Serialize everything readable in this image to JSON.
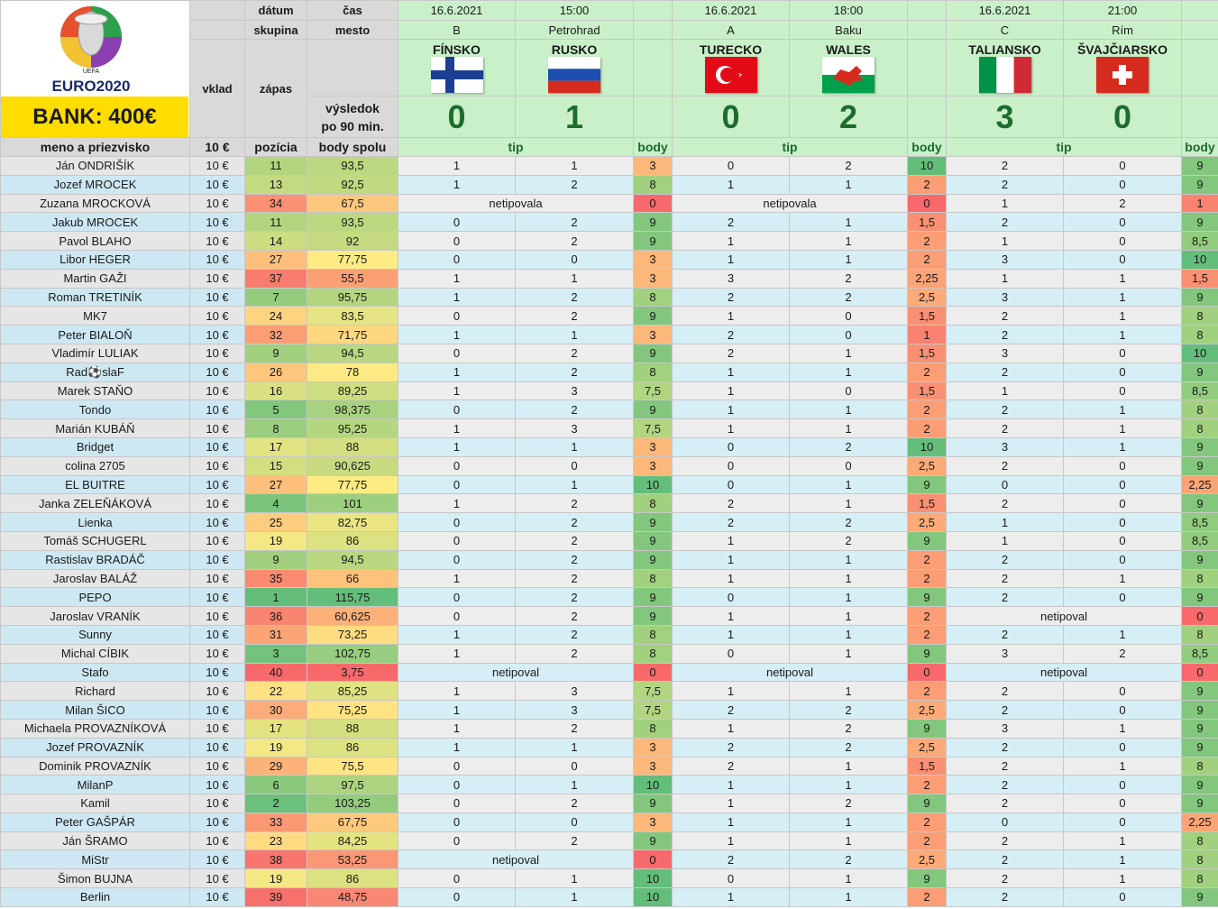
{
  "logo": {
    "text": "EURO2020",
    "uefa": "UEFA"
  },
  "bank": "BANK: 400€",
  "labels": {
    "datum": "dátum",
    "cas": "čas",
    "skupina": "skupina",
    "mesto": "mesto",
    "vklad": "vklad",
    "zapas": "zápas",
    "vysledok1": "výsledok",
    "vysledok2": "po 90 min.",
    "meno": "meno a priezvisko",
    "vklad_val": "10 €",
    "pozicia": "pozícia",
    "body_spolu": "body spolu",
    "tip": "tip",
    "body": "body"
  },
  "matches": [
    {
      "date": "16.6.2021",
      "time": "15:00",
      "group": "B",
      "city": "Petrohrad",
      "home": "FÍNSKO",
      "away": "RUSKO",
      "home_score": "0",
      "away_score": "1",
      "home_flag": "finland-flag-icon",
      "away_flag": "russia-flag-icon"
    },
    {
      "date": "16.6.2021",
      "time": "18:00",
      "group": "A",
      "city": "Baku",
      "home": "TURECKO",
      "away": "WALES",
      "home_score": "0",
      "away_score": "2",
      "home_flag": "turkey-flag-icon",
      "away_flag": "wales-flag-icon"
    },
    {
      "date": "16.6.2021",
      "time": "21:00",
      "group": "C",
      "city": "Rím",
      "home": "TALIANSKO",
      "away": "ŠVAJČIARSKO",
      "home_score": "3",
      "away_score": "0",
      "home_flag": "italy-flag-icon",
      "away_flag": "switzerland-flag-icon"
    }
  ],
  "rows": [
    {
      "name": "Ján ONDRIŠÍK",
      "stake": "10 €",
      "pos": "11",
      "total": "93,5",
      "t": [
        [
          "1",
          "1",
          "3"
        ],
        [
          "0",
          "2",
          "10"
        ],
        [
          "2",
          "0",
          "9"
        ]
      ]
    },
    {
      "name": "Jozef MROCEK",
      "stake": "10 €",
      "pos": "13",
      "total": "92,5",
      "t": [
        [
          "1",
          "2",
          "8"
        ],
        [
          "1",
          "1",
          "2"
        ],
        [
          "2",
          "0",
          "9"
        ]
      ]
    },
    {
      "name": "Zuzana MROCKOVÁ",
      "stake": "10 €",
      "pos": "34",
      "total": "67,5",
      "t": [
        [
          "netipovala",
          "",
          "0"
        ],
        [
          "netipovala",
          "",
          "0"
        ],
        [
          "1",
          "2",
          "1"
        ]
      ]
    },
    {
      "name": "Jakub MROCEK",
      "stake": "10 €",
      "pos": "11",
      "total": "93,5",
      "t": [
        [
          "0",
          "2",
          "9"
        ],
        [
          "2",
          "1",
          "1,5"
        ],
        [
          "2",
          "0",
          "9"
        ]
      ]
    },
    {
      "name": "Pavol BLAHO",
      "stake": "10 €",
      "pos": "14",
      "total": "92",
      "t": [
        [
          "0",
          "2",
          "9"
        ],
        [
          "1",
          "1",
          "2"
        ],
        [
          "1",
          "0",
          "8,5"
        ]
      ]
    },
    {
      "name": "Libor HEGER",
      "stake": "10 €",
      "pos": "27",
      "total": "77,75",
      "t": [
        [
          "0",
          "0",
          "3"
        ],
        [
          "1",
          "1",
          "2"
        ],
        [
          "3",
          "0",
          "10"
        ]
      ]
    },
    {
      "name": "Martin GAŽI",
      "stake": "10 €",
      "pos": "37",
      "total": "55,5",
      "t": [
        [
          "1",
          "1",
          "3"
        ],
        [
          "3",
          "2",
          "2,25"
        ],
        [
          "1",
          "1",
          "1,5"
        ]
      ]
    },
    {
      "name": "Roman TRETINÍK",
      "stake": "10 €",
      "pos": "7",
      "total": "95,75",
      "t": [
        [
          "1",
          "2",
          "8"
        ],
        [
          "2",
          "2",
          "2,5"
        ],
        [
          "3",
          "1",
          "9"
        ]
      ]
    },
    {
      "name": "MK7",
      "stake": "10 €",
      "pos": "24",
      "total": "83,5",
      "t": [
        [
          "0",
          "2",
          "9"
        ],
        [
          "1",
          "0",
          "1,5"
        ],
        [
          "2",
          "1",
          "8"
        ]
      ]
    },
    {
      "name": "Peter BIALOŇ",
      "stake": "10 €",
      "pos": "32",
      "total": "71,75",
      "t": [
        [
          "1",
          "1",
          "3"
        ],
        [
          "2",
          "0",
          "1"
        ],
        [
          "2",
          "1",
          "8"
        ]
      ]
    },
    {
      "name": "Vladimír LULIAK",
      "stake": "10 €",
      "pos": "9",
      "total": "94,5",
      "t": [
        [
          "0",
          "2",
          "9"
        ],
        [
          "2",
          "1",
          "1,5"
        ],
        [
          "3",
          "0",
          "10"
        ]
      ]
    },
    {
      "name": "Rad⚽slaF",
      "stake": "10 €",
      "pos": "26",
      "total": "78",
      "t": [
        [
          "1",
          "2",
          "8"
        ],
        [
          "1",
          "1",
          "2"
        ],
        [
          "2",
          "0",
          "9"
        ]
      ]
    },
    {
      "name": "Marek STAŇO",
      "stake": "10 €",
      "pos": "16",
      "total": "89,25",
      "t": [
        [
          "1",
          "3",
          "7,5"
        ],
        [
          "1",
          "0",
          "1,5"
        ],
        [
          "1",
          "0",
          "8,5"
        ]
      ]
    },
    {
      "name": "Tondo",
      "stake": "10 €",
      "pos": "5",
      "total": "98,375",
      "t": [
        [
          "0",
          "2",
          "9"
        ],
        [
          "1",
          "1",
          "2"
        ],
        [
          "2",
          "1",
          "8"
        ]
      ]
    },
    {
      "name": "Marián KUBÁŇ",
      "stake": "10 €",
      "pos": "8",
      "total": "95,25",
      "t": [
        [
          "1",
          "3",
          "7,5"
        ],
        [
          "1",
          "1",
          "2"
        ],
        [
          "2",
          "1",
          "8"
        ]
      ]
    },
    {
      "name": "Bridget",
      "stake": "10 €",
      "pos": "17",
      "total": "88",
      "t": [
        [
          "1",
          "1",
          "3"
        ],
        [
          "0",
          "2",
          "10"
        ],
        [
          "3",
          "1",
          "9"
        ]
      ]
    },
    {
      "name": "colina 2705",
      "stake": "10 €",
      "pos": "15",
      "total": "90,625",
      "t": [
        [
          "0",
          "0",
          "3"
        ],
        [
          "0",
          "0",
          "2,5"
        ],
        [
          "2",
          "0",
          "9"
        ]
      ]
    },
    {
      "name": "EL BUITRE",
      "stake": "10 €",
      "pos": "27",
      "total": "77,75",
      "t": [
        [
          "0",
          "1",
          "10"
        ],
        [
          "0",
          "1",
          "9"
        ],
        [
          "0",
          "0",
          "2,25"
        ]
      ]
    },
    {
      "name": "Janka ZELEŇÁKOVÁ",
      "stake": "10 €",
      "pos": "4",
      "total": "101",
      "t": [
        [
          "1",
          "2",
          "8"
        ],
        [
          "2",
          "1",
          "1,5"
        ],
        [
          "2",
          "0",
          "9"
        ]
      ]
    },
    {
      "name": "Lienka",
      "stake": "10 €",
      "pos": "25",
      "total": "82,75",
      "t": [
        [
          "0",
          "2",
          "9"
        ],
        [
          "2",
          "2",
          "2,5"
        ],
        [
          "1",
          "0",
          "8,5"
        ]
      ]
    },
    {
      "name": "Tomáš SCHUGERL",
      "stake": "10 €",
      "pos": "19",
      "total": "86",
      "t": [
        [
          "0",
          "2",
          "9"
        ],
        [
          "1",
          "2",
          "9"
        ],
        [
          "1",
          "0",
          "8,5"
        ]
      ]
    },
    {
      "name": "Rastislav BRADÁČ",
      "stake": "10 €",
      "pos": "9",
      "total": "94,5",
      "t": [
        [
          "0",
          "2",
          "9"
        ],
        [
          "1",
          "1",
          "2"
        ],
        [
          "2",
          "0",
          "9"
        ]
      ]
    },
    {
      "name": "Jaroslav BALÁŽ",
      "stake": "10 €",
      "pos": "35",
      "total": "66",
      "t": [
        [
          "1",
          "2",
          "8"
        ],
        [
          "1",
          "1",
          "2"
        ],
        [
          "2",
          "1",
          "8"
        ]
      ]
    },
    {
      "name": "PEPO",
      "stake": "10 €",
      "pos": "1",
      "total": "115,75",
      "t": [
        [
          "0",
          "2",
          "9"
        ],
        [
          "0",
          "1",
          "9"
        ],
        [
          "2",
          "0",
          "9"
        ]
      ]
    },
    {
      "name": "Jaroslav VRANÍK",
      "stake": "10 €",
      "pos": "36",
      "total": "60,625",
      "t": [
        [
          "0",
          "2",
          "9"
        ],
        [
          "1",
          "1",
          "2"
        ],
        [
          "netipoval",
          "",
          "0"
        ]
      ]
    },
    {
      "name": "Sunny",
      "stake": "10 €",
      "pos": "31",
      "total": "73,25",
      "t": [
        [
          "1",
          "2",
          "8"
        ],
        [
          "1",
          "1",
          "2"
        ],
        [
          "2",
          "1",
          "8"
        ]
      ]
    },
    {
      "name": "Michal CÍBIK",
      "stake": "10 €",
      "pos": "3",
      "total": "102,75",
      "t": [
        [
          "1",
          "2",
          "8"
        ],
        [
          "0",
          "1",
          "9"
        ],
        [
          "3",
          "2",
          "8,5"
        ]
      ]
    },
    {
      "name": "Stafo",
      "stake": "10 €",
      "pos": "40",
      "total": "3,75",
      "t": [
        [
          "netipoval",
          "",
          "0"
        ],
        [
          "netipoval",
          "",
          "0"
        ],
        [
          "netipoval",
          "",
          "0"
        ]
      ]
    },
    {
      "name": "Richard",
      "stake": "10 €",
      "pos": "22",
      "total": "85,25",
      "t": [
        [
          "1",
          "3",
          "7,5"
        ],
        [
          "1",
          "1",
          "2"
        ],
        [
          "2",
          "0",
          "9"
        ]
      ]
    },
    {
      "name": "Milan ŠICO",
      "stake": "10 €",
      "pos": "30",
      "total": "75,25",
      "t": [
        [
          "1",
          "3",
          "7,5"
        ],
        [
          "2",
          "2",
          "2,5"
        ],
        [
          "2",
          "0",
          "9"
        ]
      ]
    },
    {
      "name": "Michaela PROVAZNÍKOVÁ",
      "stake": "10 €",
      "pos": "17",
      "total": "88",
      "t": [
        [
          "1",
          "2",
          "8"
        ],
        [
          "1",
          "2",
          "9"
        ],
        [
          "3",
          "1",
          "9"
        ]
      ]
    },
    {
      "name": "Jozef PROVAZNÍK",
      "stake": "10 €",
      "pos": "19",
      "total": "86",
      "t": [
        [
          "1",
          "1",
          "3"
        ],
        [
          "2",
          "2",
          "2,5"
        ],
        [
          "2",
          "0",
          "9"
        ]
      ]
    },
    {
      "name": "Dominik PROVAZNÍK",
      "stake": "10 €",
      "pos": "29",
      "total": "75,5",
      "t": [
        [
          "0",
          "0",
          "3"
        ],
        [
          "2",
          "1",
          "1,5"
        ],
        [
          "2",
          "1",
          "8"
        ]
      ]
    },
    {
      "name": "MilanP",
      "stake": "10 €",
      "pos": "6",
      "total": "97,5",
      "t": [
        [
          "0",
          "1",
          "10"
        ],
        [
          "1",
          "1",
          "2"
        ],
        [
          "2",
          "0",
          "9"
        ]
      ]
    },
    {
      "name": "Kamil",
      "stake": "10 €",
      "pos": "2",
      "total": "103,25",
      "t": [
        [
          "0",
          "2",
          "9"
        ],
        [
          "1",
          "2",
          "9"
        ],
        [
          "2",
          "0",
          "9"
        ]
      ]
    },
    {
      "name": "Peter GAŠPÁR",
      "stake": "10 €",
      "pos": "33",
      "total": "67,75",
      "t": [
        [
          "0",
          "0",
          "3"
        ],
        [
          "1",
          "1",
          "2"
        ],
        [
          "0",
          "0",
          "2,25"
        ]
      ]
    },
    {
      "name": "Ján ŠRAMO",
      "stake": "10 €",
      "pos": "23",
      "total": "84,25",
      "t": [
        [
          "0",
          "2",
          "9"
        ],
        [
          "1",
          "1",
          "2"
        ],
        [
          "2",
          "1",
          "8"
        ]
      ]
    },
    {
      "name": "MiStr",
      "stake": "10 €",
      "pos": "38",
      "total": "53,25",
      "t": [
        [
          "netipoval",
          "",
          "0"
        ],
        [
          "2",
          "2",
          "2,5"
        ],
        [
          "2",
          "1",
          "8"
        ]
      ]
    },
    {
      "name": "Šimon BUJNA",
      "stake": "10 €",
      "pos": "19",
      "total": "86",
      "t": [
        [
          "0",
          "1",
          "10"
        ],
        [
          "0",
          "1",
          "9"
        ],
        [
          "2",
          "1",
          "8"
        ]
      ]
    },
    {
      "name": "Berlin",
      "stake": "10 €",
      "pos": "39",
      "total": "48,75",
      "t": [
        [
          "0",
          "1",
          "10"
        ],
        [
          "1",
          "1",
          "2"
        ],
        [
          "2",
          "0",
          "9"
        ]
      ]
    }
  ]
}
